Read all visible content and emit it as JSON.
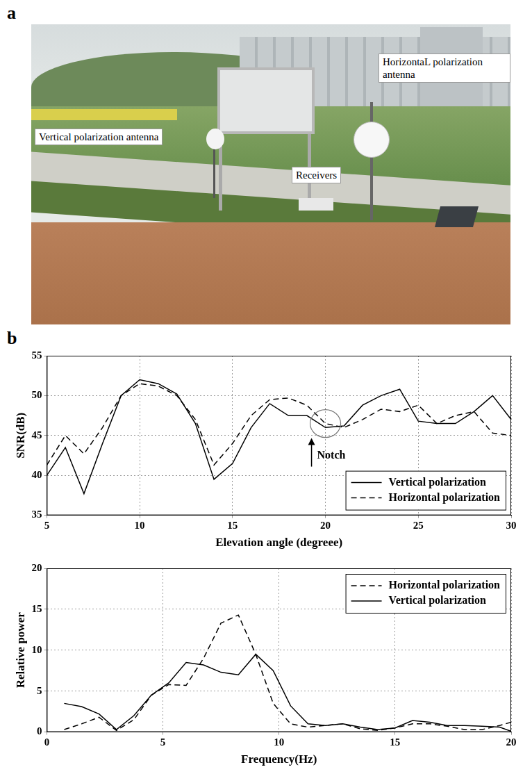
{
  "panel_a": {
    "letter": "a",
    "labels": [
      "Vertical polarization antenna",
      "HorizontaL polarization antenna",
      "Receivers"
    ]
  },
  "panel_b": {
    "letter": "b"
  },
  "chart_data": [
    {
      "type": "line",
      "xlabel": "Elevation angle (degreee)",
      "ylabel": "SNR(dB)",
      "x": [
        5,
        6,
        7,
        8,
        9,
        10,
        11,
        12,
        13,
        14,
        15,
        16,
        17,
        18,
        19,
        20,
        21,
        22,
        23,
        24,
        25,
        26,
        27,
        28,
        29,
        30
      ],
      "series": [
        {
          "name": "Vertical polarization",
          "color": "#000000",
          "line_style": "solid",
          "marker": "none",
          "values": [
            40,
            43.5,
            37.7,
            44,
            50,
            52,
            51.5,
            50.2,
            46.5,
            39.5,
            41.5,
            46,
            49,
            47.5,
            47.5,
            46,
            46.2,
            48.8,
            50,
            50.8,
            46.8,
            46.5,
            46.5,
            48,
            50,
            47
          ]
        },
        {
          "name": "Horizontal polarization",
          "color": "#000000",
          "line_style": "dashed",
          "marker": "none",
          "values": [
            41.3,
            45,
            42.7,
            46,
            50,
            51.5,
            51.2,
            50,
            47,
            41.3,
            44,
            47.5,
            49.5,
            49.7,
            48.8,
            46.5,
            46,
            47,
            48.3,
            48,
            48.8,
            46.5,
            47.5,
            48,
            45.3,
            45
          ]
        }
      ],
      "xlim": [
        5,
        30
      ],
      "xticks": [
        5,
        10,
        15,
        20,
        25,
        30
      ],
      "ylim": [
        35,
        55
      ],
      "yticks": [
        35,
        40,
        45,
        50,
        55
      ],
      "grid": true,
      "legend": "lower right",
      "annotations": [
        {
          "text": "Notch",
          "x": 20,
          "y": 46.5
        }
      ]
    },
    {
      "type": "line",
      "xlabel": "Frequency(Hz)",
      "ylabel": "Relative power",
      "x": [
        0.75,
        1.5,
        2.25,
        3,
        3.75,
        4.5,
        5.25,
        6,
        6.75,
        7.5,
        8.25,
        9,
        9.75,
        10.5,
        11.25,
        12,
        12.75,
        13.5,
        14.25,
        15,
        15.75,
        16.5,
        17.25,
        18,
        18.75,
        19.5,
        20
      ],
      "series": [
        {
          "name": "Horizontal polarization",
          "color": "#000000",
          "line_style": "dashed",
          "marker": "none",
          "values": [
            0.3,
            1.0,
            1.8,
            0.2,
            1.5,
            4.5,
            5.8,
            5.7,
            9.0,
            13.3,
            14.3,
            9.5,
            3.5,
            1.0,
            0.6,
            0.8,
            1.0,
            0.4,
            0.2,
            0.5,
            1.0,
            1.0,
            0.7,
            0.3,
            0.3,
            0.8,
            1.2
          ]
        },
        {
          "name": "Vertical polarization",
          "color": "#000000",
          "line_style": "solid",
          "marker": "none",
          "values": [
            3.5,
            3.1,
            2.2,
            0.3,
            2.0,
            4.5,
            6.0,
            8.5,
            8.2,
            7.3,
            7.0,
            9.5,
            7.5,
            3.2,
            1.0,
            0.8,
            1.0,
            0.6,
            0.3,
            0.5,
            1.4,
            1.2,
            0.8,
            0.8,
            0.7,
            0.6,
            0.1
          ]
        }
      ],
      "xlim": [
        0,
        20
      ],
      "xticks": [
        0,
        5,
        10,
        15,
        20
      ],
      "ylim": [
        0,
        20
      ],
      "yticks": [
        0,
        5,
        10,
        15,
        20
      ],
      "grid": true,
      "legend": "upper right"
    }
  ]
}
